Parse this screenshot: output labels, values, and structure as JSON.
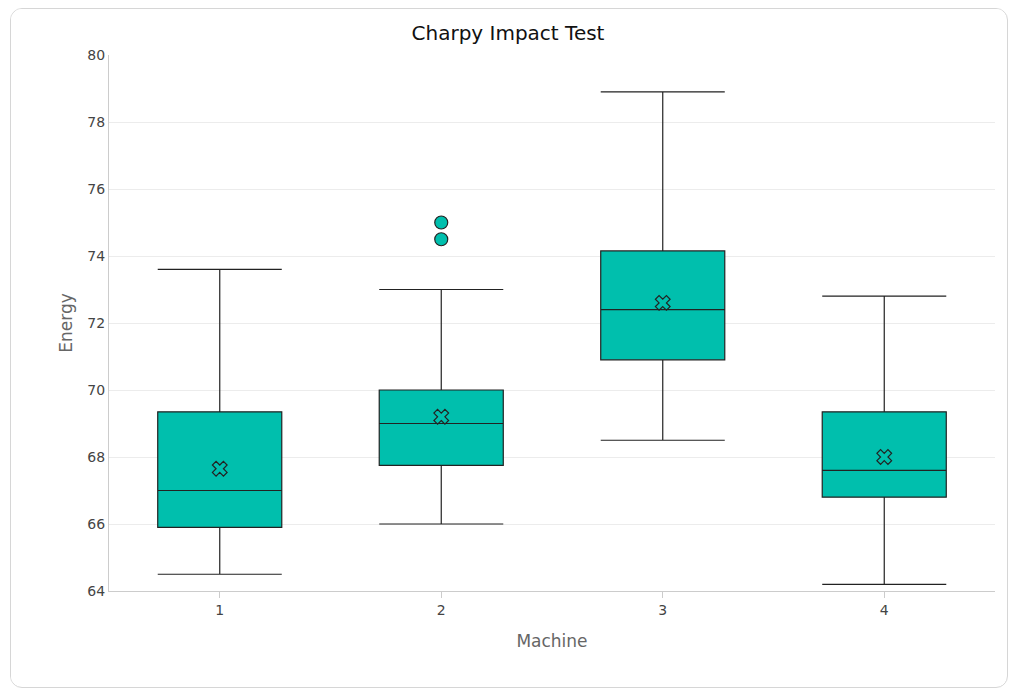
{
  "chart_data": {
    "type": "box",
    "title": "Charpy Impact Test",
    "x_label": "Machine",
    "y_label": "Energy",
    "categories": [
      "1",
      "2",
      "3",
      "4"
    ],
    "boxes": [
      {
        "min": 64.5,
        "q1": 65.9,
        "median": 67.0,
        "q3": 69.35,
        "max": 73.6,
        "mean": 67.65,
        "outliers": []
      },
      {
        "min": 66.0,
        "q1": 67.75,
        "median": 69.0,
        "q3": 70.0,
        "max": 73.0,
        "mean": 69.2,
        "outliers": [
          75.0,
          74.5
        ]
      },
      {
        "min": 68.5,
        "q1": 70.9,
        "median": 72.4,
        "q3": 74.15,
        "max": 78.9,
        "mean": 72.6,
        "outliers": []
      },
      {
        "min": 64.2,
        "q1": 66.8,
        "median": 67.6,
        "q3": 69.35,
        "max": 72.8,
        "mean": 68.0,
        "outliers": []
      }
    ],
    "color": "#00bfad",
    "marker": "x",
    "ylim": [
      64,
      80
    ],
    "yticks": [
      64,
      66,
      68,
      70,
      72,
      74,
      76,
      78,
      80
    ],
    "grid": true
  }
}
